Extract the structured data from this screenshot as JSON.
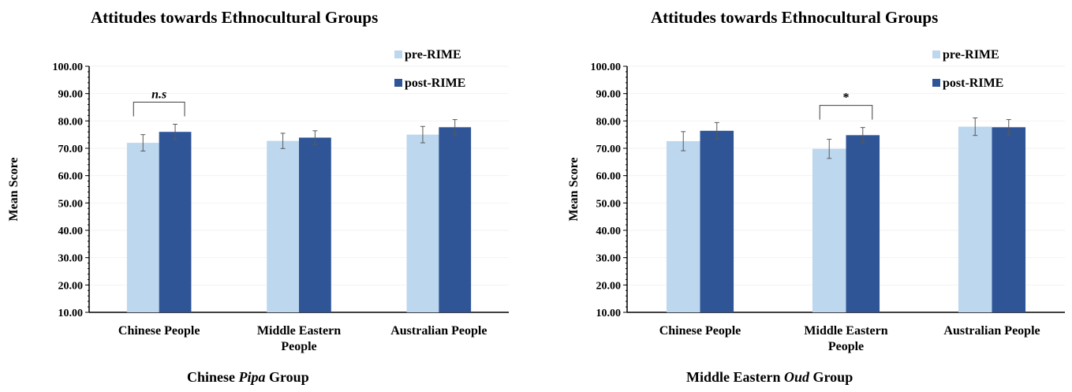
{
  "colors": {
    "pre": "#bdd7ee",
    "post": "#2f5597",
    "axis": "#000000",
    "grid": "#f2f2f2",
    "error": "#595959"
  },
  "chart_data": [
    {
      "type": "bar",
      "title": "Attitudes towards Ethnocultural Groups",
      "caption_prefix": "Chinese ",
      "caption_italic": "Pipa",
      "caption_suffix": " Group",
      "ylabel": "Mean Score",
      "xlabel": "",
      "ylim": [
        10,
        100
      ],
      "yticks": [
        "10.00",
        "20.00",
        "30.00",
        "40.00",
        "50.00",
        "60.00",
        "70.00",
        "80.00",
        "90.00",
        "100.00"
      ],
      "categories": [
        [
          "Chinese People"
        ],
        [
          "Middle Eastern",
          "People"
        ],
        [
          "Australian People"
        ]
      ],
      "series": [
        {
          "name": "pre-RIME",
          "values": [
            72.0,
            72.7,
            75.0
          ],
          "errors": [
            3.0,
            2.8,
            3.0
          ]
        },
        {
          "name": "post-RIME",
          "values": [
            76.0,
            73.9,
            77.7
          ],
          "errors": [
            2.8,
            2.5,
            2.8
          ]
        }
      ],
      "legend": "top-right",
      "grid": true,
      "annotation": {
        "text": "n.s",
        "italic": true,
        "category_index": 0
      }
    },
    {
      "type": "bar",
      "title": "Attitudes towards Ethnocultural Groups",
      "caption_prefix": "Middle Eastern ",
      "caption_italic": "Oud",
      "caption_suffix": " Group",
      "ylabel": "Mean Score",
      "xlabel": "",
      "ylim": [
        10,
        100
      ],
      "yticks": [
        "10.00",
        "20.00",
        "30.00",
        "40.00",
        "50.00",
        "60.00",
        "70.00",
        "80.00",
        "90.00",
        "100.00"
      ],
      "categories": [
        [
          "Chinese People"
        ],
        [
          "Middle Eastern",
          "People"
        ],
        [
          "Australian People"
        ]
      ],
      "series": [
        {
          "name": "pre-RIME",
          "values": [
            72.6,
            69.8,
            77.9
          ],
          "errors": [
            3.5,
            3.5,
            3.2
          ]
        },
        {
          "name": "post-RIME",
          "values": [
            76.4,
            74.8,
            77.7
          ],
          "errors": [
            3.0,
            2.8,
            2.8
          ]
        }
      ],
      "legend": "top-right",
      "grid": true,
      "annotation": {
        "text": "*",
        "italic": false,
        "category_index": 1
      }
    }
  ]
}
